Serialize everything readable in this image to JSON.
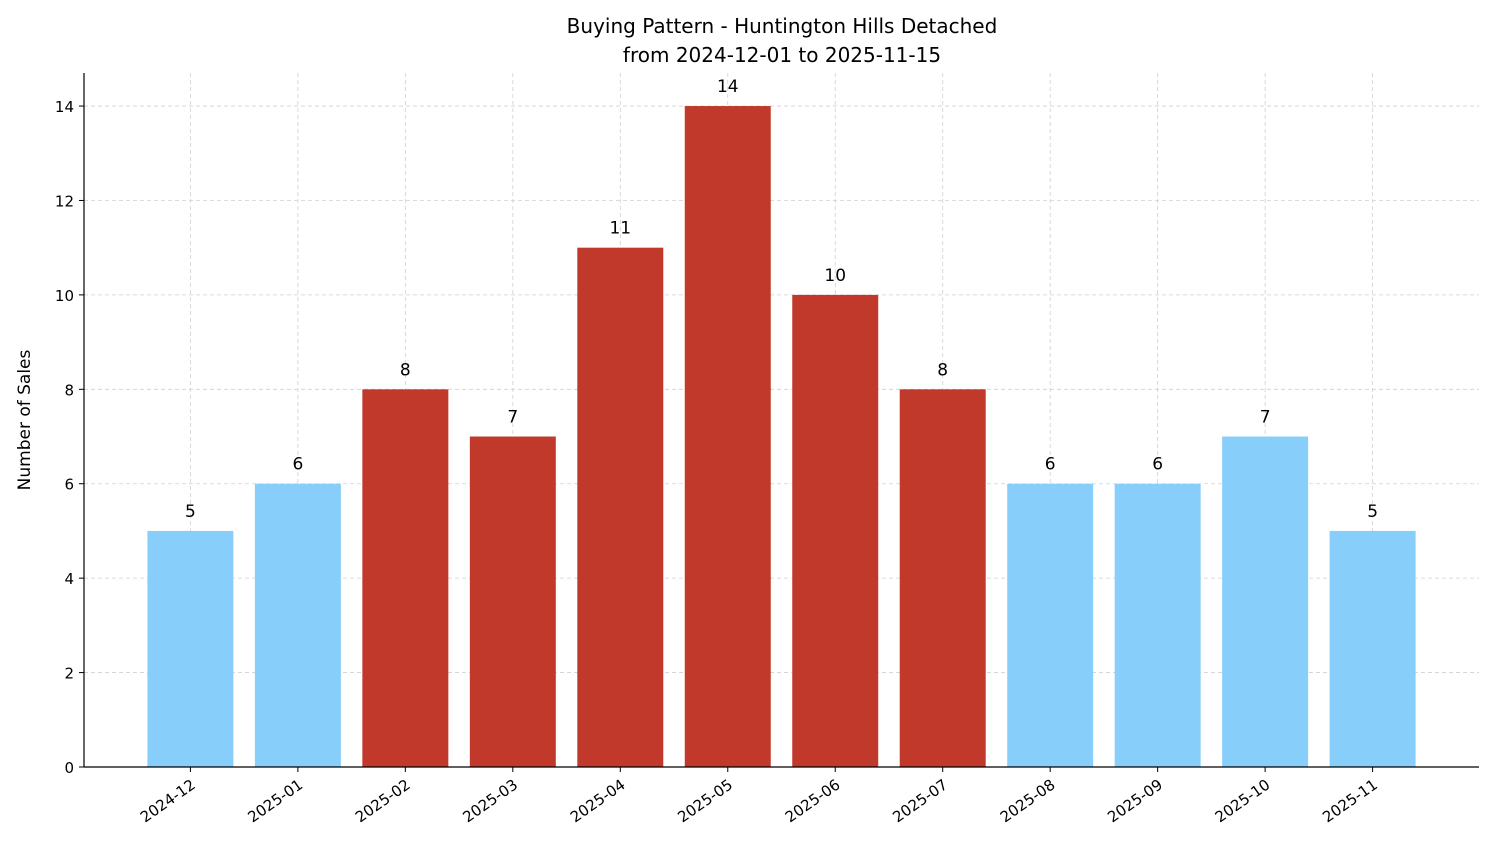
{
  "chart_data": {
    "type": "bar",
    "title": "Buying Pattern - Huntington Hills Detached",
    "subtitle": "from 2024-12-01 to 2025-11-15",
    "ylabel": "Number of Sales",
    "categories": [
      "2024-12",
      "2025-01",
      "2025-02",
      "2025-03",
      "2025-04",
      "2025-05",
      "2025-06",
      "2025-07",
      "2025-08",
      "2025-09",
      "2025-10",
      "2025-11"
    ],
    "values": [
      5,
      6,
      8,
      7,
      11,
      14,
      10,
      8,
      6,
      6,
      7,
      5
    ],
    "colors": [
      "#87cefa",
      "#87cefa",
      "#c0392b",
      "#c0392b",
      "#c0392b",
      "#c0392b",
      "#c0392b",
      "#c0392b",
      "#87cefa",
      "#87cefa",
      "#87cefa",
      "#87cefa"
    ],
    "ylim": [
      0,
      14.7
    ],
    "yticks": [
      0,
      2,
      4,
      6,
      8,
      10,
      12,
      14
    ],
    "grid": true
  }
}
